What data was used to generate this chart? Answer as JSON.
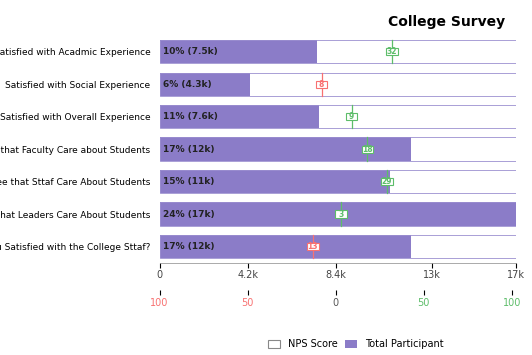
{
  "title": "College Survey",
  "categories": [
    "Satisfied with Acadmic Experience",
    "Satisfied with Social Experience",
    "Satisfied with Overall Experience",
    "Agree that Faculty Care about Students",
    "Agree that Sttaf Care About Students",
    "Agree that Leaders Care About Students",
    "Are you Satisfied with the College Sttaf?"
  ],
  "labels": [
    "10% (7.5k)",
    "6% (4.3k)",
    "11% (7.6k)",
    "17% (12k)",
    "15% (11k)",
    "24% (17k)",
    "17% (12k)"
  ],
  "total_participant": [
    7500,
    4300,
    7600,
    12000,
    11000,
    17000,
    12000
  ],
  "nps_scores": [
    32,
    -8,
    9,
    18,
    29,
    3,
    -13
  ],
  "bar_color": "#8B7CC8",
  "nps_positive_color": "#5DBD6A",
  "nps_negative_color": "#F87171",
  "xlim_max": 17000,
  "xticks_top": [
    0,
    4200,
    8400,
    13000,
    17000
  ],
  "xtick_labels_top": [
    "0",
    "4.2k",
    "8.4k",
    "13k",
    "17k"
  ],
  "nps_ticks": [
    -100,
    -50,
    0,
    50,
    100
  ],
  "nps_tick_labels": [
    "100",
    "50",
    "0",
    "50",
    "100"
  ],
  "bottom_neg_color": "#F87171",
  "bottom_pos_color": "#5DBD6A",
  "bottom_zero_color": "#555555",
  "legend_labels": [
    "NPS Score",
    "Total Participant"
  ],
  "bar_border_color": "#9B8FD0"
}
